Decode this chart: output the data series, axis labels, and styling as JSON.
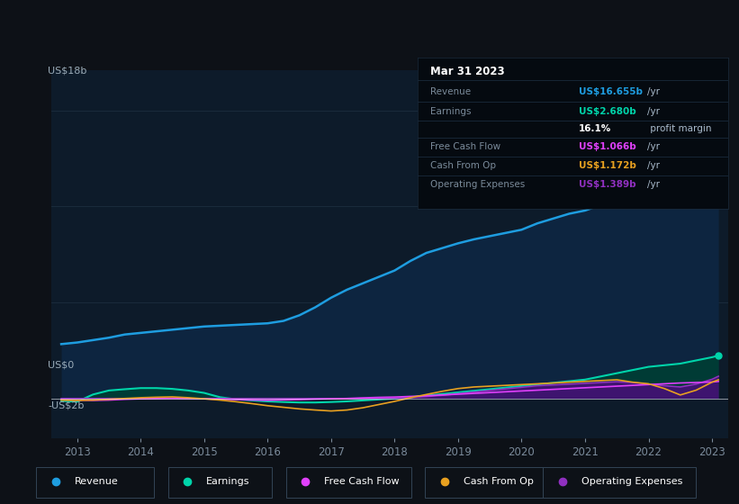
{
  "bg_color": "#0d1117",
  "plot_bg_color": "#0d1b2a",
  "years": [
    2012.75,
    2013.0,
    2013.25,
    2013.5,
    2013.75,
    2014.0,
    2014.25,
    2014.5,
    2014.75,
    2015.0,
    2015.25,
    2015.5,
    2015.75,
    2016.0,
    2016.25,
    2016.5,
    2016.75,
    2017.0,
    2017.25,
    2017.5,
    2017.75,
    2018.0,
    2018.25,
    2018.5,
    2018.75,
    2019.0,
    2019.25,
    2019.5,
    2019.75,
    2020.0,
    2020.25,
    2020.5,
    2020.75,
    2021.0,
    2021.25,
    2021.5,
    2021.75,
    2022.0,
    2022.25,
    2022.5,
    2022.75,
    2023.0,
    2023.1
  ],
  "revenue": [
    3.4,
    3.5,
    3.65,
    3.8,
    4.0,
    4.1,
    4.2,
    4.3,
    4.4,
    4.5,
    4.55,
    4.6,
    4.65,
    4.7,
    4.85,
    5.2,
    5.7,
    6.3,
    6.8,
    7.2,
    7.6,
    8.0,
    8.6,
    9.1,
    9.4,
    9.7,
    9.95,
    10.15,
    10.35,
    10.55,
    10.95,
    11.25,
    11.55,
    11.75,
    12.1,
    12.9,
    13.6,
    14.1,
    14.4,
    13.9,
    14.4,
    16.4,
    16.655
  ],
  "earnings": [
    -0.15,
    -0.2,
    0.25,
    0.5,
    0.58,
    0.65,
    0.65,
    0.6,
    0.5,
    0.35,
    0.08,
    -0.05,
    -0.12,
    -0.18,
    -0.22,
    -0.25,
    -0.25,
    -0.22,
    -0.18,
    -0.12,
    -0.06,
    0.0,
    0.08,
    0.18,
    0.28,
    0.38,
    0.48,
    0.58,
    0.68,
    0.78,
    0.88,
    0.98,
    1.08,
    1.18,
    1.38,
    1.58,
    1.78,
    1.98,
    2.08,
    2.18,
    2.38,
    2.58,
    2.68
  ],
  "free_cash_flow": [
    -0.08,
    -0.1,
    -0.12,
    -0.1,
    -0.05,
    -0.02,
    0.0,
    0.02,
    0.0,
    -0.02,
    -0.05,
    -0.07,
    -0.09,
    -0.11,
    -0.09,
    -0.07,
    -0.04,
    -0.02,
    0.0,
    0.04,
    0.07,
    0.09,
    0.13,
    0.17,
    0.22,
    0.27,
    0.32,
    0.37,
    0.42,
    0.47,
    0.52,
    0.57,
    0.62,
    0.67,
    0.72,
    0.77,
    0.82,
    0.87,
    0.92,
    0.97,
    1.0,
    1.03,
    1.066
  ],
  "cash_from_op": [
    -0.1,
    -0.12,
    -0.1,
    -0.05,
    0.0,
    0.05,
    0.08,
    0.1,
    0.05,
    -0.02,
    -0.1,
    -0.2,
    -0.32,
    -0.45,
    -0.55,
    -0.65,
    -0.72,
    -0.78,
    -0.72,
    -0.58,
    -0.38,
    -0.18,
    0.05,
    0.25,
    0.45,
    0.62,
    0.72,
    0.77,
    0.82,
    0.87,
    0.92,
    0.97,
    1.02,
    1.07,
    1.12,
    1.17,
    1.02,
    0.92,
    0.62,
    0.22,
    0.52,
    1.02,
    1.172
  ],
  "operating_expenses": [
    0.0,
    0.0,
    0.0,
    0.0,
    0.0,
    0.0,
    0.0,
    0.0,
    0.0,
    0.0,
    0.0,
    0.0,
    0.0,
    0.0,
    0.0,
    0.0,
    0.0,
    0.0,
    0.0,
    0.0,
    0.0,
    0.02,
    0.06,
    0.12,
    0.2,
    0.3,
    0.4,
    0.5,
    0.6,
    0.7,
    0.8,
    0.85,
    0.9,
    0.95,
    1.0,
    1.05,
    1.0,
    0.9,
    0.8,
    0.72,
    0.9,
    1.2,
    1.389
  ],
  "revenue_color": "#1e9de0",
  "earnings_color": "#00d4aa",
  "fcf_color": "#e040fb",
  "cashop_color": "#e8a020",
  "opex_color": "#9030c0",
  "revenue_fill_color": "#0d2540",
  "earnings_fill_color": "#003d35",
  "opex_fill_color": "#4a0e7a",
  "ylabel_us18b": "US$18b",
  "ylabel_us0": "US$0",
  "ylabel_neg2b": "-US$2b",
  "ylim": [
    -2.5,
    20.5
  ],
  "xlim": [
    2012.6,
    2023.25
  ],
  "x_ticks": [
    2013,
    2014,
    2015,
    2016,
    2017,
    2018,
    2019,
    2020,
    2021,
    2022,
    2023
  ],
  "grid_color": "#1a2b3c",
  "grid_levels": [
    18,
    12,
    6,
    0
  ],
  "zero_line_color": "#ffffff",
  "highlight_start": 2022.0,
  "info_box": {
    "title": "Mar 31 2023",
    "title_color": "#ffffff",
    "bg_color": "#050a10",
    "border_color": "#1e2d3d",
    "rows": [
      {
        "label": "Revenue",
        "value": "US$16.655b",
        "unit": "/yr",
        "label_color": "#7a8a9a",
        "value_color": "#1e9de0"
      },
      {
        "label": "Earnings",
        "value": "US$2.680b",
        "unit": "/yr",
        "label_color": "#7a8a9a",
        "value_color": "#00d4aa"
      },
      {
        "label": "",
        "value": "16.1%",
        "unit": " profit margin",
        "label_color": "#7a8a9a",
        "value_color": "#ffffff"
      },
      {
        "label": "Free Cash Flow",
        "value": "US$1.066b",
        "unit": "/yr",
        "label_color": "#7a8a9a",
        "value_color": "#e040fb"
      },
      {
        "label": "Cash From Op",
        "value": "US$1.172b",
        "unit": "/yr",
        "label_color": "#7a8a9a",
        "value_color": "#e8a020"
      },
      {
        "label": "Operating Expenses",
        "value": "US$1.389b",
        "unit": "/yr",
        "label_color": "#7a8a9a",
        "value_color": "#9030c0"
      }
    ]
  },
  "legend_entries": [
    {
      "label": "Revenue",
      "color": "#1e9de0"
    },
    {
      "label": "Earnings",
      "color": "#00d4aa"
    },
    {
      "label": "Free Cash Flow",
      "color": "#e040fb"
    },
    {
      "label": "Cash From Op",
      "color": "#e8a020"
    },
    {
      "label": "Operating Expenses",
      "color": "#9030c0"
    }
  ]
}
